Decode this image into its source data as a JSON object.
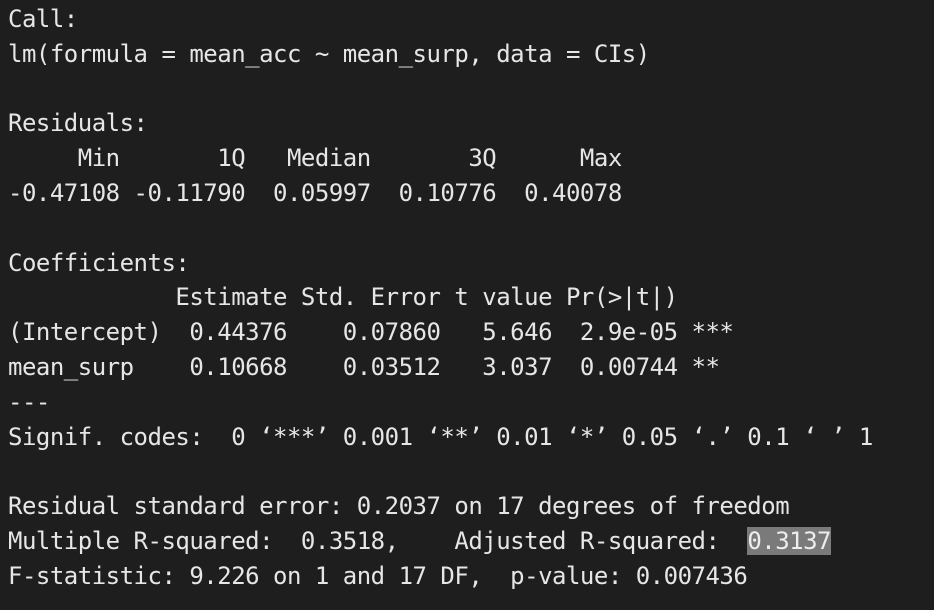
{
  "colors": {
    "background": "#1e1e1e",
    "text": "#e6e6e6",
    "selection_highlight": "#7a7a7a"
  },
  "console": {
    "call_header": "Call:",
    "call_formula": "lm(formula = mean_acc ~ mean_surp, data = CIs)",
    "residuals_header": "Residuals:",
    "residuals_columns": "     Min       1Q   Median       3Q      Max ",
    "residuals_values": "-0.47108 -0.11790  0.05997  0.10776  0.40078 ",
    "coefficients_header": "Coefficients:",
    "coefficients_columns": "            Estimate Std. Error t value Pr(>|t|)    ",
    "coefficient_rows": [
      "(Intercept)  0.44376    0.07860   5.646  2.9e-05 ***",
      "mean_surp    0.10668    0.03512   3.037  0.00744 ** "
    ],
    "separator": "---",
    "signif_codes": "Signif. codes:  0 ‘***’ 0.001 ‘**’ 0.01 ‘*’ 0.05 ‘.’ 0.1 ‘ ’ 1",
    "residual_std_error": "Residual standard error: 0.2037 on 17 degrees of freedom",
    "multiple_r_squared_label": "Multiple R-squared:  0.3518,\tAdjusted R-squared:  ",
    "adjusted_r_squared_value": "0.3137",
    "f_statistic": "F-statistic: 9.226 on 1 and 17 DF,  p-value: 0.007436"
  }
}
